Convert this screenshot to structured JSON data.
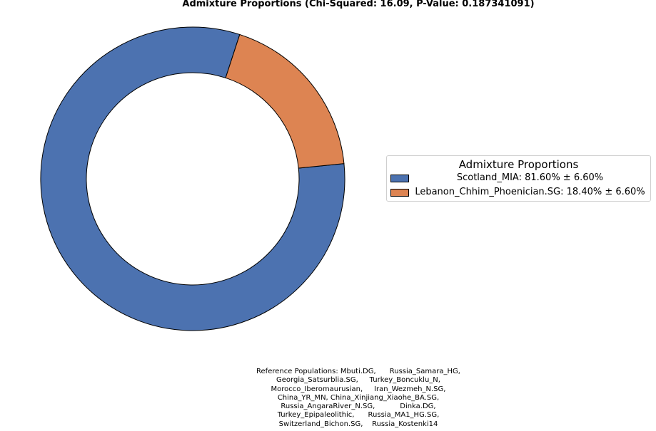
{
  "chart_data": {
    "type": "pie",
    "style": "donut",
    "title": "Admixture Proportions (Chi-Squared: 16.09, P-Value: 0.187341091)",
    "slices": [
      {
        "label": "Scotland_MIA",
        "value": 81.6,
        "error": 6.6,
        "color": "#4c72b0"
      },
      {
        "label": "Lebanon_Chhim_Phoenician.SG",
        "value": 18.4,
        "error": 6.6,
        "color": "#dd8452"
      }
    ],
    "legend": {
      "title": "Admixture Proportions",
      "placement": "center-right",
      "entries": [
        "Scotland_MIA: 81.60% ± 6.60%",
        "Lebanon_Chhim_Phoenician.SG: 18.40% ± 6.60%"
      ]
    }
  },
  "reference_populations": {
    "lines": [
      "Reference Populations: Mbuti.DG,      Russia_Samara_HG,",
      "Georgia_Satsurblia.SG,     Turkey_Boncuklu_N,",
      "Morocco_Iberomaurusian,     Iran_Wezmeh_N.SG,",
      "China_YR_MN, China_Xinjiang_Xiaohe_BA.SG,",
      "Russia_AngaraRiver_N.SG,           Dinka.DG,",
      "Turkey_Epipaleolithic,      Russia_MA1_HG.SG,",
      "Switzerland_Bichon.SG,    Russia_Kostenki14"
    ]
  }
}
